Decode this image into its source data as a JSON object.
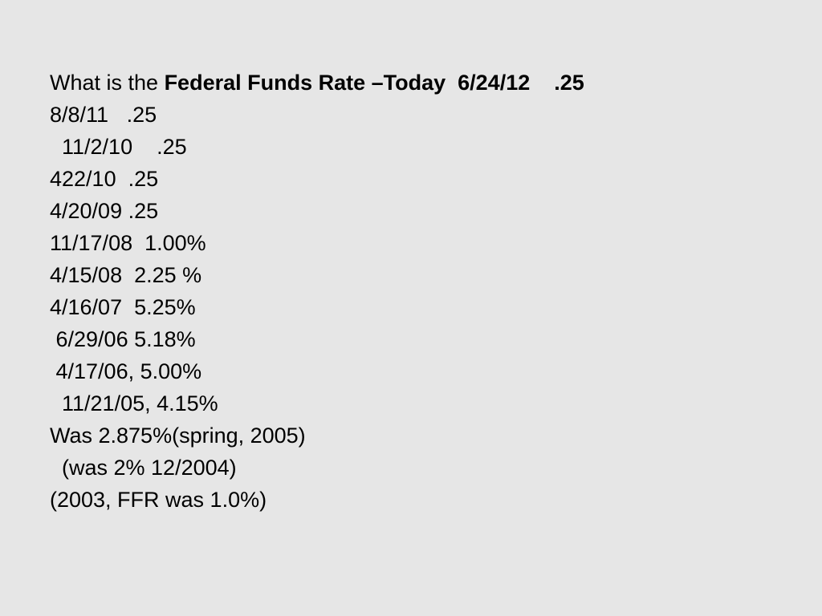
{
  "slide": {
    "title_line": {
      "prefix": "What is the ",
      "bold": "Federal Funds Rate –Today  6/24/12    .25"
    },
    "lines": [
      "8/8/11   .25",
      "  11/2/10    .25",
      "422/10  .25",
      "4/20/09 .25",
      "11/17/08  1.00%",
      "4/15/08  2.25 %",
      "4/16/07  5.25%",
      " 6/29/06 5.18%",
      " 4/17/06, 5.00%",
      "  11/21/05, 4.15%",
      "Was 2.875%(spring, 2005)",
      "  (was 2% 12/2004)",
      "(2003, FFR was 1.0%)"
    ]
  }
}
